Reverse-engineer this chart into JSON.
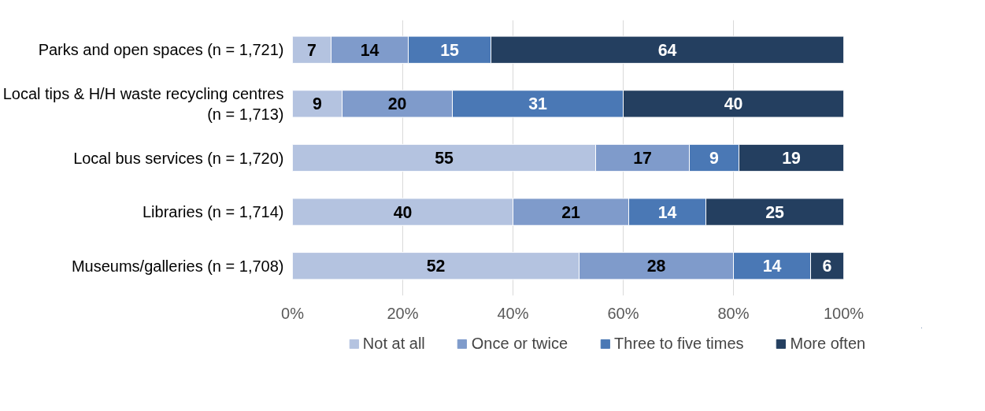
{
  "chart_data": {
    "type": "bar",
    "orientation": "horizontal",
    "stacked": true,
    "data_labels": true,
    "grid": "x",
    "legend": "bottom",
    "categories": [
      "Parks and open spaces (n = 1,721)",
      "Local tips & H/H waste recycling centres\n(n = 1,713)",
      "Local bus services (n = 1,720)",
      "Libraries (n = 1,714)",
      "Museums/galleries (n = 1,708)"
    ],
    "series": [
      {
        "name": "Not at all",
        "color": "#b4c3e0",
        "values": [
          7,
          9,
          55,
          40,
          52
        ]
      },
      {
        "name": "Once or twice",
        "color": "#7f9bcb",
        "values": [
          14,
          20,
          17,
          21,
          28
        ]
      },
      {
        "name": "Three to five times",
        "color": "#4a78b5",
        "values": [
          15,
          31,
          9,
          14,
          14
        ]
      },
      {
        "name": "More often",
        "color": "#243f60",
        "values": [
          64,
          40,
          19,
          25,
          6
        ]
      }
    ],
    "xlim": [
      0,
      100
    ],
    "xticks": [
      {
        "value": 0,
        "label": "0%"
      },
      {
        "value": 20,
        "label": "20%"
      },
      {
        "value": 40,
        "label": "40%"
      },
      {
        "value": 60,
        "label": "60%"
      },
      {
        "value": 80,
        "label": "80%"
      },
      {
        "value": 100,
        "label": "100%"
      }
    ]
  }
}
